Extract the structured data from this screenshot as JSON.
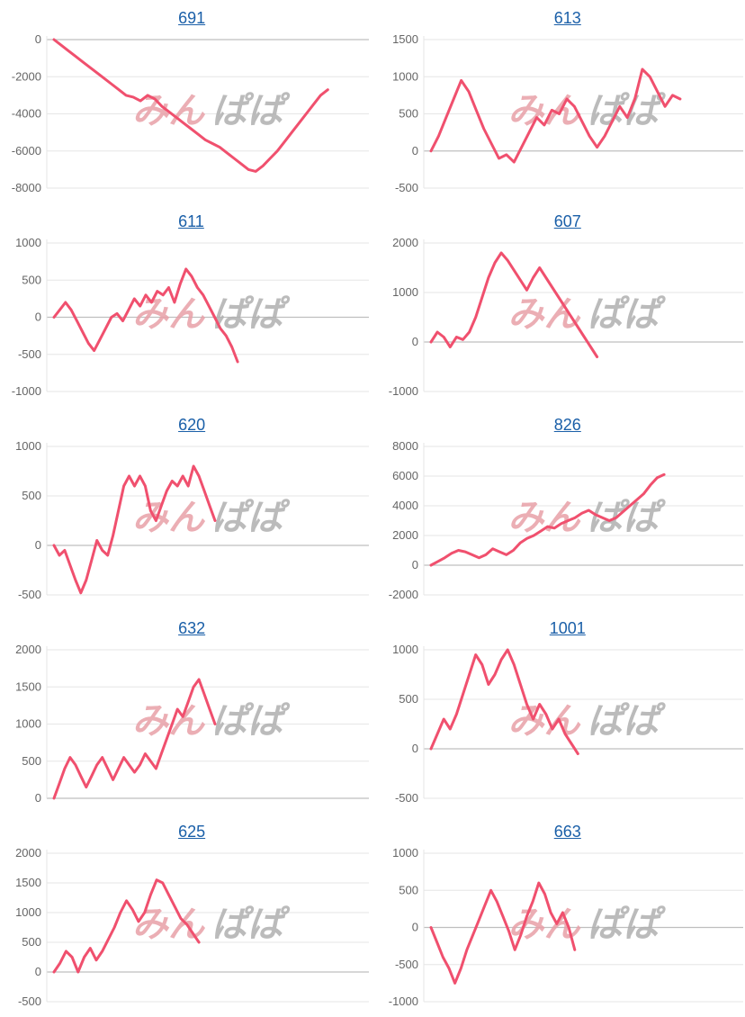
{
  "watermark": {
    "left": "みん",
    "right": "ぱぱ",
    "left_color": "#e8a0a8",
    "right_color": "#b0b0b0"
  },
  "colors": {
    "line": "#f0506e",
    "title": "#1a5fa8",
    "axis": "#bfbfbf",
    "grid": "#e6e6e6",
    "tick": "#666666"
  },
  "chart_data": [
    {
      "type": "line",
      "title": "691",
      "ylim": [
        -8000,
        0
      ],
      "yticks": [
        0,
        -2000,
        -4000,
        -6000,
        -8000
      ],
      "values": [
        0,
        -300,
        -600,
        -900,
        -1200,
        -1500,
        -1800,
        -2100,
        -2400,
        -2700,
        -3000,
        -3100,
        -3300,
        -3000,
        -3200,
        -3600,
        -3900,
        -4200,
        -4500,
        -4800,
        -5100,
        -5400,
        -5600,
        -5800,
        -6100,
        -6400,
        -6700,
        -7000,
        -7100,
        -6800,
        -6400,
        -6000,
        -5500,
        -5000,
        -4500,
        -4000,
        -3500,
        -3000,
        -2700
      ]
    },
    {
      "type": "line",
      "title": "613",
      "ylim": [
        -500,
        1500
      ],
      "yticks": [
        1500,
        1000,
        500,
        0,
        -500
      ],
      "values": [
        0,
        200,
        450,
        700,
        950,
        800,
        550,
        300,
        100,
        -100,
        -50,
        -150,
        50,
        250,
        450,
        350,
        550,
        500,
        700,
        600,
        400,
        200,
        50,
        200,
        400,
        600,
        450,
        700,
        1100,
        1000,
        800,
        600,
        750,
        700
      ]
    },
    {
      "type": "line",
      "title": "611",
      "ylim": [
        -1000,
        1000
      ],
      "yticks": [
        1000,
        500,
        0,
        -500,
        -1000
      ],
      "values": [
        0,
        100,
        200,
        100,
        -50,
        -200,
        -350,
        -450,
        -300,
        -150,
        0,
        50,
        -50,
        100,
        250,
        150,
        300,
        200,
        350,
        300,
        400,
        200,
        450,
        650,
        550,
        400,
        300,
        150,
        0,
        -150,
        -250,
        -400,
        -600
      ]
    },
    {
      "type": "line",
      "title": "607",
      "ylim": [
        -1000,
        2000
      ],
      "yticks": [
        2000,
        1000,
        0,
        -1000
      ],
      "values": [
        0,
        200,
        100,
        -100,
        100,
        50,
        200,
        500,
        900,
        1300,
        1600,
        1800,
        1650,
        1450,
        1250,
        1050,
        1300,
        1500,
        1300,
        1100,
        900,
        700,
        500,
        300,
        100,
        -100,
        -300
      ]
    },
    {
      "type": "line",
      "title": "620",
      "ylim": [
        -500,
        1000
      ],
      "yticks": [
        1000,
        500,
        0,
        -500
      ],
      "values": [
        0,
        -100,
        -50,
        -200,
        -350,
        -480,
        -350,
        -150,
        50,
        -50,
        -100,
        100,
        350,
        600,
        700,
        600,
        700,
        600,
        350,
        250,
        400,
        550,
        650,
        600,
        700,
        600,
        800,
        700,
        550,
        400,
        250
      ]
    },
    {
      "type": "line",
      "title": "826",
      "ylim": [
        -2000,
        8000
      ],
      "yticks": [
        8000,
        6000,
        4000,
        2000,
        0,
        -2000
      ],
      "values": [
        0,
        250,
        500,
        800,
        1000,
        900,
        700,
        500,
        700,
        1100,
        900,
        700,
        1000,
        1500,
        1800,
        2000,
        2300,
        2600,
        2500,
        2800,
        3000,
        3200,
        3500,
        3700,
        3400,
        3200,
        3000,
        3200,
        3600,
        4000,
        4400,
        4800,
        5400,
        5900,
        6100
      ]
    },
    {
      "type": "line",
      "title": "632",
      "ylim": [
        0,
        2000
      ],
      "yticks": [
        2000,
        1500,
        1000,
        500,
        0
      ],
      "values": [
        0,
        200,
        400,
        550,
        450,
        300,
        150,
        300,
        450,
        550,
        400,
        250,
        400,
        550,
        450,
        350,
        450,
        600,
        500,
        400,
        600,
        800,
        1000,
        1200,
        1100,
        1300,
        1500,
        1600,
        1400,
        1200,
        1000
      ]
    },
    {
      "type": "line",
      "title": "1001",
      "ylim": [
        -500,
        1000
      ],
      "yticks": [
        1000,
        500,
        0,
        -500
      ],
      "values": [
        0,
        150,
        300,
        200,
        350,
        550,
        750,
        950,
        850,
        650,
        750,
        900,
        1000,
        850,
        650,
        450,
        300,
        450,
        350,
        200,
        300,
        150,
        50,
        -50
      ]
    },
    {
      "type": "line",
      "title": "625",
      "ylim": [
        -500,
        2000
      ],
      "yticks": [
        2000,
        1500,
        1000,
        500,
        0,
        -500
      ],
      "values": [
        0,
        150,
        350,
        250,
        0,
        250,
        400,
        200,
        350,
        550,
        750,
        1000,
        1200,
        1050,
        850,
        1000,
        1300,
        1550,
        1500,
        1300,
        1100,
        900,
        800,
        650,
        500
      ]
    },
    {
      "type": "line",
      "title": "663",
      "ylim": [
        -1000,
        1000
      ],
      "yticks": [
        1000,
        500,
        0,
        -500,
        -1000
      ],
      "values": [
        0,
        -200,
        -400,
        -550,
        -750,
        -550,
        -300,
        -100,
        100,
        300,
        500,
        350,
        150,
        -50,
        -300,
        -100,
        150,
        350,
        600,
        450,
        200,
        50,
        200,
        0,
        -300
      ]
    }
  ]
}
